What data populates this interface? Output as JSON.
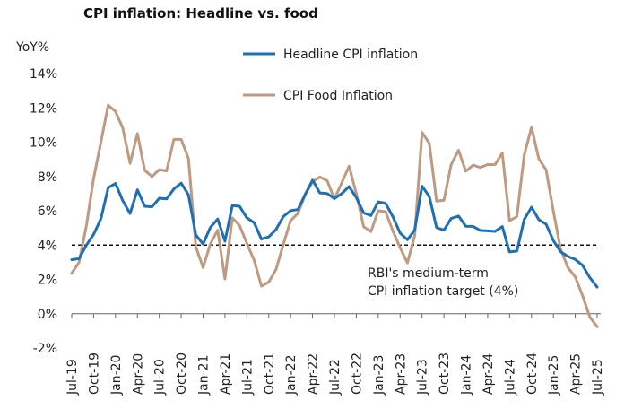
{
  "chart_data": {
    "type": "line",
    "title": "CPI inflation: Headline vs. food",
    "ylabel": "YoY%",
    "ylim": [
      -2,
      14
    ],
    "yticks": [
      -2,
      0,
      2,
      4,
      6,
      8,
      10,
      12,
      14
    ],
    "ytick_labels": [
      "-2%",
      "0%",
      "2%",
      "4%",
      "6%",
      "8%",
      "10%",
      "12%",
      "14%"
    ],
    "xtick_labels": [
      "Jul-19",
      "Oct-19",
      "Jan-20",
      "Apr-20",
      "Jul-20",
      "Oct-20",
      "Jan-21",
      "Apr-21",
      "Jul-21",
      "Oct-21",
      "Jan-22",
      "Apr-22",
      "Jul-22",
      "Oct-22",
      "Jan-23",
      "Apr-23",
      "Jul-23",
      "Oct-23",
      "Jan-24",
      "Apr-24",
      "Jul-24",
      "Oct-24",
      "Jan-25",
      "Apr-25",
      "Jul-25"
    ],
    "x_start": "Jul-19",
    "x_end": "Jul-25",
    "series": [
      {
        "name": "Headline CPI inflation",
        "color": "#1F6FB5",
        "values": [
          3.15,
          3.21,
          3.99,
          4.62,
          5.54,
          7.35,
          7.59,
          6.58,
          5.84,
          7.22,
          6.26,
          6.23,
          6.73,
          6.69,
          7.27,
          7.61,
          6.93,
          4.59,
          4.06,
          5.03,
          5.52,
          4.23,
          6.3,
          6.26,
          5.59,
          5.3,
          4.35,
          4.48,
          4.91,
          5.66,
          6.01,
          6.07,
          6.95,
          7.79,
          7.04,
          7.01,
          6.71,
          7.0,
          7.41,
          6.77,
          5.88,
          5.72,
          6.52,
          6.44,
          5.66,
          4.7,
          4.31,
          4.87,
          7.44,
          6.83,
          5.02,
          4.87,
          5.55,
          5.69,
          5.1,
          5.09,
          4.85,
          4.83,
          4.8,
          5.08,
          3.6,
          3.65,
          5.49,
          6.21,
          5.48,
          5.22,
          4.26,
          3.61,
          3.34,
          3.16,
          2.82,
          2.1,
          1.55
        ]
      },
      {
        "name": "CPI Food Inflation",
        "color": "#BF9A80",
        "values": [
          2.36,
          2.99,
          5.11,
          7.89,
          10.01,
          12.16,
          11.79,
          10.81,
          8.76,
          10.5,
          8.36,
          8.0,
          8.4,
          8.32,
          10.16,
          10.16,
          9.05,
          3.9,
          2.69,
          4.06,
          4.87,
          2.02,
          5.58,
          5.15,
          4.1,
          3.11,
          1.6,
          1.85,
          2.58,
          4.05,
          5.43,
          5.85,
          6.95,
          7.68,
          7.97,
          7.75,
          6.69,
          7.62,
          8.6,
          7.01,
          5.07,
          4.78,
          6.0,
          5.95,
          4.84,
          3.84,
          2.96,
          4.55,
          10.57,
          9.94,
          6.56,
          6.61,
          8.7,
          9.53,
          8.3,
          8.66,
          8.52,
          8.7,
          8.69,
          9.36,
          5.42,
          5.66,
          9.24,
          10.87,
          9.04,
          8.39,
          5.97,
          3.75,
          2.69,
          2.14,
          1.06,
          -0.2,
          -0.76
        ]
      }
    ],
    "reference_line": {
      "value": 4,
      "style": "dashed",
      "label_line1": "RBI's medium-term",
      "label_line2": "CPI inflation target (4%)"
    },
    "legend_placement": "top-center",
    "grid": false
  }
}
